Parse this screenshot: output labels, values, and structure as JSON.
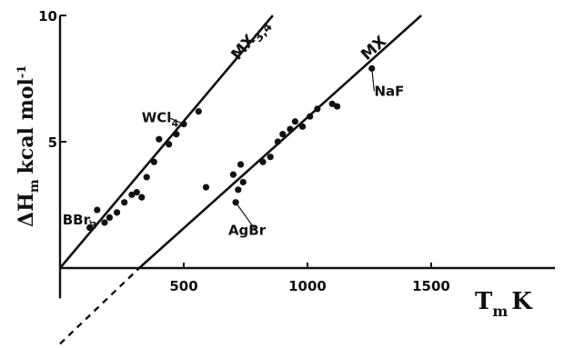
{
  "chart_data": {
    "type": "scatter",
    "title": "",
    "xlabel": "T",
    "xlabel_sub": "m",
    "xlabel_unit": "K",
    "ylabel": "ΔH",
    "ylabel_sub": "m",
    "ylabel_unit": "kcal mol",
    "ylabel_sup": "-1",
    "xlim": [
      0,
      2000
    ],
    "ylim": [
      -3,
      10
    ],
    "x_ticks": [
      500,
      1000,
      1500
    ],
    "y_ticks": [
      5,
      10
    ],
    "y_tick_labels": [
      "5",
      "10"
    ],
    "grid": false,
    "series": [
      {
        "name": "MX3,4",
        "label_x": 720,
        "label_y": 8.2,
        "line": {
          "x1": 0,
          "y1": 0,
          "x2": 860,
          "y2": 10
        },
        "dashed": false,
        "points": [
          [
            150,
            2.3
          ],
          [
            180,
            1.8
          ],
          [
            200,
            2.0
          ],
          [
            230,
            2.2
          ],
          [
            260,
            2.6
          ],
          [
            290,
            2.9
          ],
          [
            310,
            3.0
          ],
          [
            330,
            2.8
          ],
          [
            350,
            3.6
          ],
          [
            380,
            4.2
          ],
          [
            400,
            5.1
          ],
          [
            440,
            4.9
          ],
          [
            470,
            5.3
          ],
          [
            500,
            5.7
          ],
          [
            560,
            6.2
          ],
          [
            120,
            1.6
          ]
        ]
      },
      {
        "name": "MX",
        "label_x": 1240,
        "label_y": 8.2,
        "line": {
          "x1": 320,
          "y1": 0,
          "x2": 1460,
          "y2": 10
        },
        "dashed": false,
        "points": [
          [
            590,
            3.2
          ],
          [
            700,
            3.7
          ],
          [
            710,
            2.6
          ],
          [
            720,
            3.1
          ],
          [
            730,
            4.1
          ],
          [
            740,
            3.4
          ],
          [
            820,
            4.2
          ],
          [
            850,
            4.4
          ],
          [
            880,
            5.0
          ],
          [
            900,
            5.3
          ],
          [
            930,
            5.5
          ],
          [
            950,
            5.8
          ],
          [
            980,
            5.6
          ],
          [
            1010,
            6.0
          ],
          [
            1040,
            6.3
          ],
          [
            1100,
            6.5
          ],
          [
            1120,
            6.4
          ],
          [
            1260,
            7.9
          ]
        ]
      }
    ],
    "extrapolation": {
      "x1": 0,
      "y1": -3,
      "x2": 320,
      "y2": 0,
      "dashed": true
    },
    "annotations": [
      {
        "text": "WCl",
        "sub": "4",
        "x": 500,
        "y": 5.7,
        "tx": 330,
        "ty": 5.95
      },
      {
        "text": "BBr",
        "sub": "3",
        "x": 130,
        "y": 1.55,
        "tx": 10,
        "ty": 1.9
      },
      {
        "text": "AgBr",
        "x": 710,
        "y": 2.6,
        "tx": 680,
        "ty": 1.5
      },
      {
        "text": "NaF",
        "x": 1260,
        "y": 7.9,
        "tx": 1270,
        "ty": 7.0
      }
    ]
  }
}
